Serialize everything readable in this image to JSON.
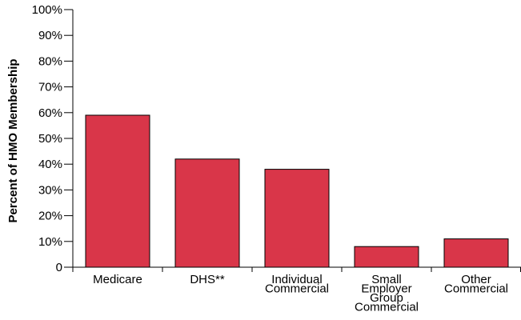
{
  "chart_data": {
    "type": "bar",
    "title": "",
    "xlabel": "",
    "ylabel": "Percent of HMO Membership",
    "ylim": [
      0,
      100
    ],
    "yticks": [
      "0",
      "10%",
      "20%",
      "30%",
      "40%",
      "50%",
      "60%",
      "70%",
      "80%",
      "90%",
      "100%"
    ],
    "grid": false,
    "categories": [
      [
        "Medicare"
      ],
      [
        "DHS**"
      ],
      [
        "Individual",
        "Commercial"
      ],
      [
        "Small",
        "Employer",
        "Group",
        "Commercial"
      ],
      [
        "Other",
        "Commercial"
      ]
    ],
    "values": [
      59,
      42,
      38,
      8,
      11
    ],
    "colors": {
      "bar": "#d93649",
      "axis": "#000000"
    }
  }
}
